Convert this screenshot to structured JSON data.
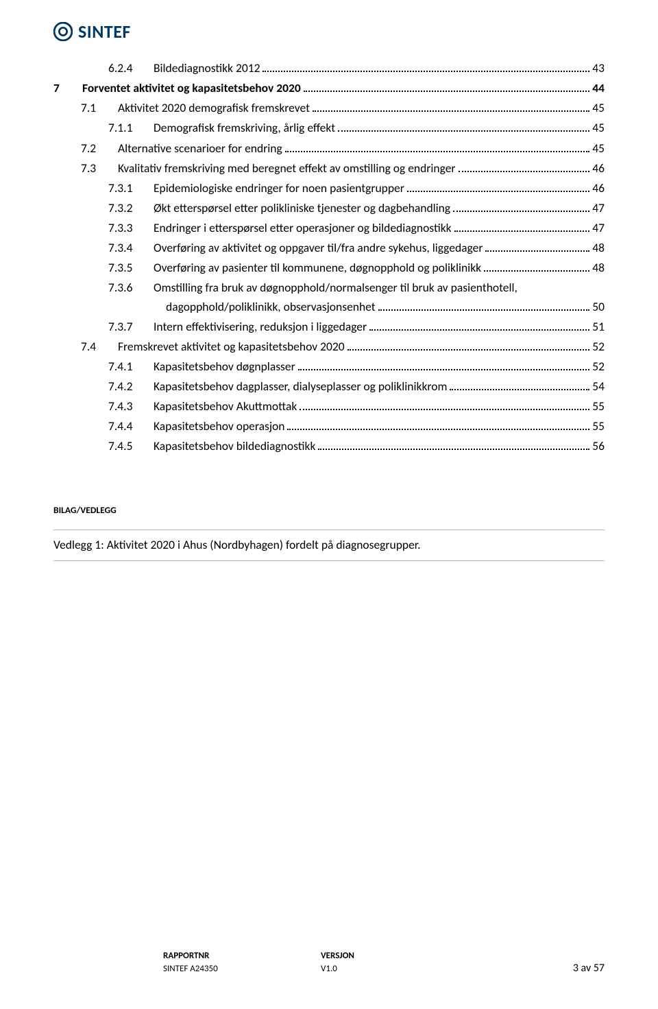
{
  "logo": {
    "text": "SINTEF",
    "brand_color": "#03395e"
  },
  "toc": [
    {
      "level": 3,
      "num": "6.2.4",
      "text": "Bildediagnostikk 2012",
      "page": 43,
      "bold": false
    },
    {
      "level": 1,
      "num": "7",
      "text": "Forventet aktivitet og kapasitetsbehov 2020",
      "page": 44,
      "bold": true
    },
    {
      "level": 2,
      "num": "7.1",
      "text": "Aktivitet 2020 demografisk fremskrevet",
      "page": 45,
      "bold": false
    },
    {
      "level": 3,
      "num": "7.1.1",
      "text": "Demografisk fremskriving, årlig effekt",
      "page": 45,
      "bold": false
    },
    {
      "level": 2,
      "num": "7.2",
      "text": "Alternative scenarioer for endring",
      "page": 45,
      "bold": false
    },
    {
      "level": 2,
      "num": "7.3",
      "text": "Kvalitativ fremskriving med beregnet effekt av omstilling og endringer",
      "page": 46,
      "bold": false
    },
    {
      "level": 3,
      "num": "7.3.1",
      "text": "Epidemiologiske endringer for noen pasientgrupper",
      "page": 46,
      "bold": false
    },
    {
      "level": 3,
      "num": "7.3.2",
      "text": "Økt etterspørsel etter polikliniske tjenester og dagbehandling",
      "page": 47,
      "bold": false
    },
    {
      "level": 3,
      "num": "7.3.3",
      "text": "Endringer i etterspørsel etter operasjoner og bildediagnostikk",
      "page": 47,
      "bold": false
    },
    {
      "level": 3,
      "num": "7.3.4",
      "text": "Overføring av aktivitet og oppgaver til/fra andre sykehus, liggedager",
      "page": 48,
      "bold": false
    },
    {
      "level": 3,
      "num": "7.3.5",
      "text": "Overføring av pasienter til kommunene, døgnopphold og poliklinikk",
      "page": 48,
      "bold": false
    },
    {
      "level": 3,
      "num": "7.3.6",
      "text_line1": "Omstilling fra bruk av døgnopphold/normalsenger til bruk av pasienthotell,",
      "text_line2": "dagopphold/poliklinikk, observasjonsenhet",
      "page": 50,
      "bold": false,
      "wrap": true
    },
    {
      "level": 3,
      "num": "7.3.7",
      "text": "Intern effektivisering, reduksjon i liggedager",
      "page": 51,
      "bold": false
    },
    {
      "level": 2,
      "num": "7.4",
      "text": "Fremskrevet aktivitet og kapasitetsbehov 2020",
      "page": 52,
      "bold": false
    },
    {
      "level": 3,
      "num": "7.4.1",
      "text": "Kapasitetsbehov døgnplasser",
      "page": 52,
      "bold": false
    },
    {
      "level": 3,
      "num": "7.4.2",
      "text": "Kapasitetsbehov dagplasser, dialyseplasser og poliklinikkrom",
      "page": 54,
      "bold": false
    },
    {
      "level": 3,
      "num": "7.4.3",
      "text": "Kapasitetsbehov Akuttmottak",
      "page": 55,
      "bold": false
    },
    {
      "level": 3,
      "num": "7.4.4",
      "text": "Kapasitetsbehov operasjon",
      "page": 55,
      "bold": false
    },
    {
      "level": 3,
      "num": "7.4.5",
      "text": "Kapasitetsbehov bildediagnostikk",
      "page": 56,
      "bold": false
    }
  ],
  "bilag_heading": "BILAG/VEDLEGG",
  "vedlegg_text": "Vedlegg 1: Aktivitet 2020 i Ahus (Nordbyhagen) fordelt på diagnosegrupper.",
  "footer": {
    "rapportnr_label": "RAPPORTNR",
    "rapportnr_value": "SINTEF A24350",
    "versjon_label": "VERSJON",
    "versjon_value": "V1.0",
    "page_indicator": "3 av 57"
  }
}
